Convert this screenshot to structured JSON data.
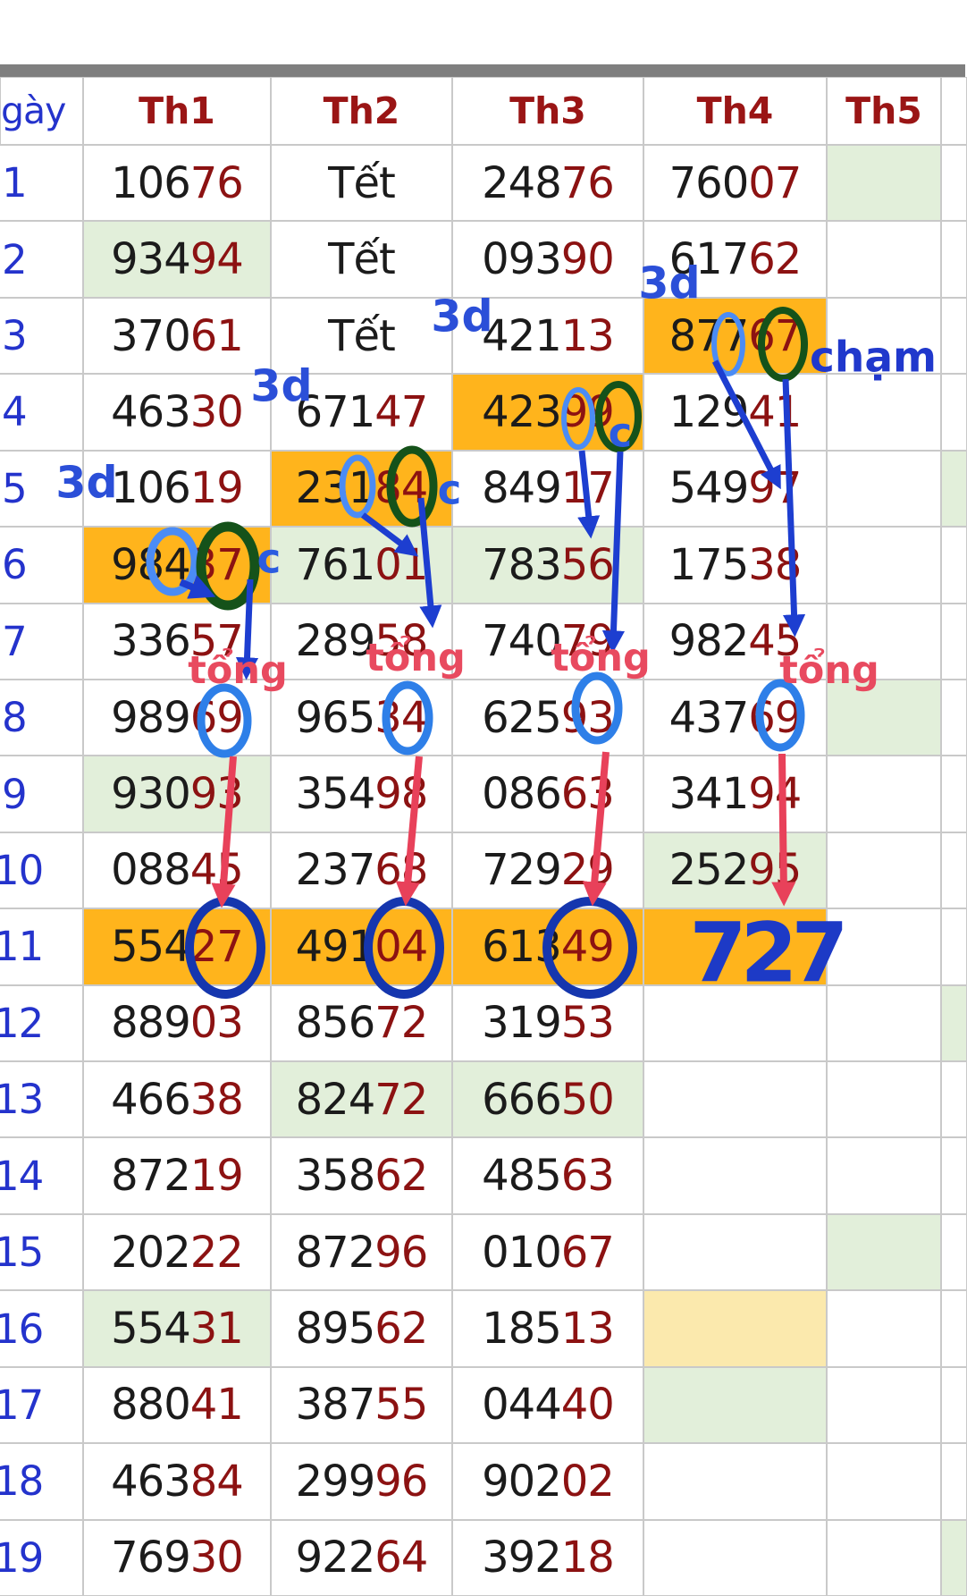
{
  "header": {
    "day_col": "gày",
    "columns": [
      "Th1",
      "Th2",
      "Th3",
      "Th4",
      "Th5"
    ]
  },
  "rows": [
    {
      "day": "1",
      "cells": [
        {
          "b": "106",
          "r": "76"
        },
        {
          "t": "Tết"
        },
        {
          "b": "248",
          "r": "76"
        },
        {
          "b": "760",
          "r": "07"
        },
        {
          "bg": "g"
        },
        {}
      ]
    },
    {
      "day": "2",
      "cells": [
        {
          "b": "934",
          "r": "94",
          "bg": "g"
        },
        {
          "t": "Tết"
        },
        {
          "b": "093",
          "r": "90"
        },
        {
          "b": "617",
          "r": "62"
        },
        {},
        {}
      ]
    },
    {
      "day": "3",
      "cells": [
        {
          "b": "370",
          "r": "61"
        },
        {
          "t": "Tết"
        },
        {
          "b": "421",
          "r": "13"
        },
        {
          "b": "877",
          "r": "67",
          "bg": "o"
        },
        {},
        {}
      ]
    },
    {
      "day": "4",
      "cells": [
        {
          "b": "463",
          "r": "30"
        },
        {
          "b": "671",
          "r": "47"
        },
        {
          "b": "423",
          "r": "99",
          "bg": "o"
        },
        {
          "b": "129",
          "r": "41"
        },
        {},
        {}
      ]
    },
    {
      "day": "5",
      "cells": [
        {
          "b": "106",
          "r": "19"
        },
        {
          "b": "231",
          "r": "84",
          "bg": "o"
        },
        {
          "b": "849",
          "r": "17"
        },
        {
          "b": "549",
          "r": "97"
        },
        {},
        {
          "bg": "g"
        }
      ]
    },
    {
      "day": "6",
      "cells": [
        {
          "b": "984",
          "r": "37",
          "bg": "o"
        },
        {
          "b": "761",
          "r": "01",
          "bg": "g"
        },
        {
          "b": "783",
          "r": "56",
          "bg": "g"
        },
        {
          "b": "175",
          "r": "38"
        },
        {},
        {}
      ]
    },
    {
      "day": "7",
      "cells": [
        {
          "b": "336",
          "r": "57"
        },
        {
          "b": "289",
          "r": "58"
        },
        {
          "b": "740",
          "r": "79"
        },
        {
          "b": "982",
          "r": "45"
        },
        {},
        {}
      ]
    },
    {
      "day": "8",
      "cells": [
        {
          "b": "989",
          "r": "69"
        },
        {
          "b": "965",
          "r": "34"
        },
        {
          "b": "625",
          "r": "93"
        },
        {
          "b": "437",
          "r": "69"
        },
        {
          "bg": "g"
        },
        {}
      ]
    },
    {
      "day": "9",
      "cells": [
        {
          "b": "930",
          "r": "93",
          "bg": "g"
        },
        {
          "b": "354",
          "r": "98"
        },
        {
          "b": "086",
          "r": "63"
        },
        {
          "b": "341",
          "r": "94"
        },
        {},
        {}
      ]
    },
    {
      "day": "10",
      "cells": [
        {
          "b": "088",
          "r": "45"
        },
        {
          "b": "237",
          "r": "68"
        },
        {
          "b": "729",
          "r": "29"
        },
        {
          "b": "252",
          "r": "95",
          "bg": "g"
        },
        {},
        {}
      ]
    },
    {
      "day": "11",
      "cells": [
        {
          "b": "554",
          "r": "27",
          "bg": "o"
        },
        {
          "b": "491",
          "r": "04",
          "bg": "o"
        },
        {
          "b": "613",
          "r": "49",
          "bg": "o"
        },
        {
          "bg": "o"
        },
        {},
        {}
      ]
    },
    {
      "day": "12",
      "cells": [
        {
          "b": "889",
          "r": "03"
        },
        {
          "b": "856",
          "r": "72"
        },
        {
          "b": "319",
          "r": "53"
        },
        {},
        {},
        {
          "bg": "g"
        }
      ]
    },
    {
      "day": "13",
      "cells": [
        {
          "b": "466",
          "r": "38"
        },
        {
          "b": "824",
          "r": "72",
          "bg": "g"
        },
        {
          "b": "666",
          "r": "50",
          "bg": "g"
        },
        {},
        {},
        {}
      ]
    },
    {
      "day": "14",
      "cells": [
        {
          "b": "872",
          "r": "19"
        },
        {
          "b": "358",
          "r": "62"
        },
        {
          "b": "485",
          "r": "63"
        },
        {},
        {},
        {}
      ]
    },
    {
      "day": "15",
      "cells": [
        {
          "b": "202",
          "r": "22"
        },
        {
          "b": "872",
          "r": "96"
        },
        {
          "b": "010",
          "r": "67"
        },
        {},
        {
          "bg": "g"
        },
        {}
      ]
    },
    {
      "day": "16",
      "cells": [
        {
          "b": "554",
          "r": "31",
          "bg": "g"
        },
        {
          "b": "895",
          "r": "62"
        },
        {
          "b": "185",
          "r": "13"
        },
        {
          "bg": "c"
        },
        {},
        {}
      ]
    },
    {
      "day": "17",
      "cells": [
        {
          "b": "880",
          "r": "41"
        },
        {
          "b": "387",
          "r": "55"
        },
        {
          "b": "044",
          "r": "40"
        },
        {
          "bg": "g"
        },
        {},
        {}
      ]
    },
    {
      "day": "18",
      "cells": [
        {
          "b": "463",
          "r": "84"
        },
        {
          "b": "299",
          "r": "96"
        },
        {
          "b": "902",
          "r": "02"
        },
        {},
        {},
        {}
      ]
    },
    {
      "day": "19",
      "cells": [
        {
          "b": "769",
          "r": "30"
        },
        {
          "b": "922",
          "r": "64"
        },
        {
          "b": "392",
          "r": "18"
        },
        {},
        {},
        {
          "bg": "g"
        }
      ]
    }
  ],
  "annotations": {
    "three_d": "3d",
    "cham": "chạm",
    "c": "c",
    "tong": "tổng",
    "big_number": "727"
  },
  "colors": {
    "orange_highlight": "#ffb41c",
    "green_highlight": "#e2efda",
    "cream_highlight": "#fbe9ad",
    "number_black": "#1b1b1b",
    "number_red": "#8c1212",
    "header_maroon": "#9a1515",
    "day_blue": "#2433cc",
    "annotation_blue": "#2b4fd8",
    "annotation_red": "#e84a5f",
    "oval_lightblue": "#4b8cf5",
    "oval_brightblue": "#2e7fe8",
    "oval_green": "#15521a",
    "oval_navy": "#1536ae",
    "big_number_blue": "#1d3ac6",
    "top_bar_gray": "#7f7f7f"
  }
}
